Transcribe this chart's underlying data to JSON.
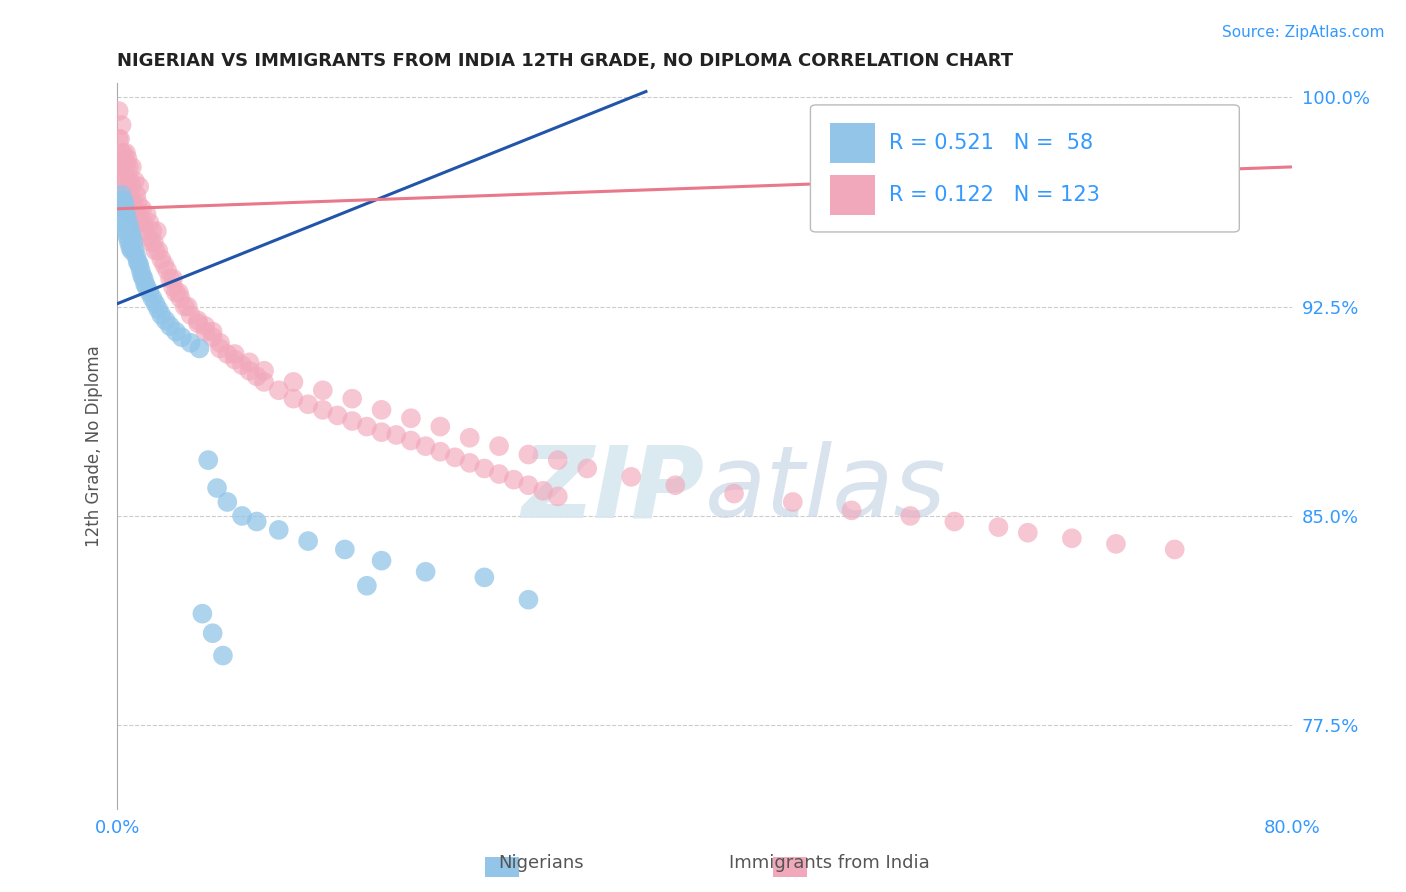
{
  "title": "NIGERIAN VS IMMIGRANTS FROM INDIA 12TH GRADE, NO DIPLOMA CORRELATION CHART",
  "source": "Source: ZipAtlas.com",
  "xlabel_nigerians": "Nigerians",
  "xlabel_india": "Immigrants from India",
  "ylabel": "12th Grade, No Diploma",
  "xlim": [
    0.0,
    0.8
  ],
  "ylim": [
    0.745,
    1.005
  ],
  "xtick_labels": [
    "0.0%",
    "80.0%"
  ],
  "yticks": [
    0.775,
    0.85,
    0.925,
    1.0
  ],
  "ytick_labels": [
    "77.5%",
    "85.0%",
    "92.5%",
    "100.0%"
  ],
  "r_nigerian": 0.521,
  "n_nigerian": 58,
  "r_india": 0.122,
  "n_india": 123,
  "color_nigerian": "#92C5E8",
  "color_india": "#F2A8BB",
  "trendline_color_nigerian": "#2255AA",
  "trendline_color_india": "#E8788A",
  "watermark_zip": "ZIP",
  "watermark_atlas": "atlas",
  "background_color": "#FFFFFF",
  "nigerian_x": [
    0.001,
    0.001,
    0.002,
    0.002,
    0.003,
    0.003,
    0.004,
    0.004,
    0.005,
    0.005,
    0.005,
    0.006,
    0.006,
    0.007,
    0.007,
    0.008,
    0.008,
    0.009,
    0.009,
    0.01,
    0.01,
    0.011,
    0.012,
    0.013,
    0.014,
    0.015,
    0.016,
    0.017,
    0.018,
    0.019,
    0.02,
    0.022,
    0.024,
    0.026,
    0.028,
    0.03,
    0.033,
    0.036,
    0.04,
    0.044,
    0.05,
    0.056,
    0.062,
    0.068,
    0.075,
    0.085,
    0.095,
    0.11,
    0.13,
    0.155,
    0.18,
    0.21,
    0.25,
    0.17,
    0.28,
    0.058,
    0.065,
    0.072
  ],
  "nigerian_y": [
    0.96,
    0.955,
    0.962,
    0.958,
    0.965,
    0.96,
    0.963,
    0.958,
    0.96,
    0.962,
    0.955,
    0.958,
    0.952,
    0.956,
    0.95,
    0.954,
    0.948,
    0.952,
    0.946,
    0.95,
    0.945,
    0.948,
    0.945,
    0.943,
    0.941,
    0.94,
    0.938,
    0.936,
    0.935,
    0.933,
    0.932,
    0.93,
    0.928,
    0.926,
    0.924,
    0.922,
    0.92,
    0.918,
    0.916,
    0.914,
    0.912,
    0.91,
    0.87,
    0.86,
    0.855,
    0.85,
    0.848,
    0.845,
    0.841,
    0.838,
    0.834,
    0.83,
    0.828,
    0.825,
    0.82,
    0.815,
    0.808,
    0.8
  ],
  "india_x": [
    0.001,
    0.001,
    0.001,
    0.002,
    0.002,
    0.002,
    0.003,
    0.003,
    0.003,
    0.004,
    0.004,
    0.004,
    0.005,
    0.005,
    0.005,
    0.006,
    0.006,
    0.006,
    0.007,
    0.007,
    0.007,
    0.008,
    0.008,
    0.008,
    0.009,
    0.009,
    0.01,
    0.01,
    0.01,
    0.011,
    0.012,
    0.012,
    0.013,
    0.013,
    0.014,
    0.014,
    0.015,
    0.015,
    0.016,
    0.017,
    0.018,
    0.019,
    0.02,
    0.021,
    0.022,
    0.023,
    0.024,
    0.025,
    0.026,
    0.027,
    0.028,
    0.03,
    0.032,
    0.034,
    0.036,
    0.038,
    0.04,
    0.043,
    0.046,
    0.05,
    0.055,
    0.06,
    0.065,
    0.07,
    0.075,
    0.08,
    0.085,
    0.09,
    0.095,
    0.1,
    0.11,
    0.12,
    0.13,
    0.14,
    0.15,
    0.16,
    0.17,
    0.18,
    0.19,
    0.2,
    0.21,
    0.22,
    0.23,
    0.24,
    0.25,
    0.26,
    0.27,
    0.28,
    0.29,
    0.3,
    0.038,
    0.042,
    0.048,
    0.055,
    0.06,
    0.065,
    0.07,
    0.08,
    0.09,
    0.1,
    0.12,
    0.14,
    0.16,
    0.18,
    0.2,
    0.22,
    0.24,
    0.26,
    0.28,
    0.3,
    0.32,
    0.35,
    0.38,
    0.42,
    0.46,
    0.5,
    0.54,
    0.57,
    0.6,
    0.62,
    0.65,
    0.68,
    0.72
  ],
  "india_y": [
    0.985,
    0.975,
    0.995,
    0.975,
    0.985,
    0.968,
    0.98,
    0.97,
    0.99,
    0.975,
    0.965,
    0.98,
    0.968,
    0.978,
    0.96,
    0.975,
    0.965,
    0.98,
    0.97,
    0.962,
    0.978,
    0.965,
    0.975,
    0.958,
    0.97,
    0.962,
    0.968,
    0.958,
    0.975,
    0.962,
    0.96,
    0.97,
    0.958,
    0.965,
    0.955,
    0.962,
    0.958,
    0.968,
    0.955,
    0.96,
    0.955,
    0.952,
    0.958,
    0.95,
    0.955,
    0.948,
    0.952,
    0.948,
    0.945,
    0.952,
    0.945,
    0.942,
    0.94,
    0.938,
    0.935,
    0.932,
    0.93,
    0.928,
    0.925,
    0.922,
    0.919,
    0.916,
    0.914,
    0.91,
    0.908,
    0.906,
    0.904,
    0.902,
    0.9,
    0.898,
    0.895,
    0.892,
    0.89,
    0.888,
    0.886,
    0.884,
    0.882,
    0.88,
    0.879,
    0.877,
    0.875,
    0.873,
    0.871,
    0.869,
    0.867,
    0.865,
    0.863,
    0.861,
    0.859,
    0.857,
    0.935,
    0.93,
    0.925,
    0.92,
    0.918,
    0.916,
    0.912,
    0.908,
    0.905,
    0.902,
    0.898,
    0.895,
    0.892,
    0.888,
    0.885,
    0.882,
    0.878,
    0.875,
    0.872,
    0.87,
    0.867,
    0.864,
    0.861,
    0.858,
    0.855,
    0.852,
    0.85,
    0.848,
    0.846,
    0.844,
    0.842,
    0.84,
    0.838
  ]
}
